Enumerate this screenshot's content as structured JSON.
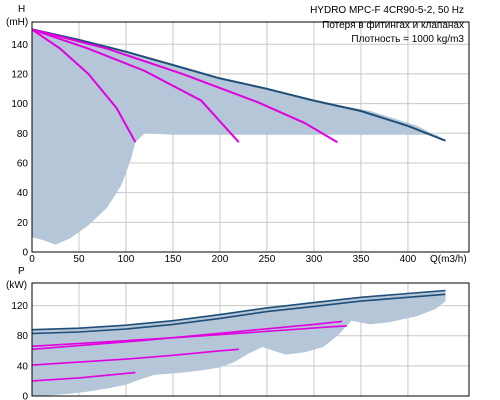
{
  "chart_data": [
    {
      "type": "line",
      "ylabel_letter": "H",
      "ylabel_unit": "(mH)",
      "xlabel": "Q(m3/h)",
      "xlim": [
        0,
        465
      ],
      "ylim": [
        0,
        155
      ],
      "x_ticks": [
        0,
        50,
        100,
        150,
        200,
        250,
        300,
        350,
        400
      ],
      "y_ticks": [
        0,
        20,
        40,
        60,
        80,
        100,
        120,
        140
      ],
      "grid": true,
      "info_lines": [
        "HYDRO MPC-F 4CR90-5-2, 50 Hz",
        "Потеря в фитингах и клапанах",
        "Плотность = 1000 kg/m3"
      ],
      "colors": {
        "max_curve": "#1f4e79",
        "pump_curves": "#e000e0",
        "region_fill": "#b4c6d8"
      },
      "max_curve": {
        "x": [
          0,
          50,
          100,
          150,
          200,
          250,
          300,
          350,
          400,
          440
        ],
        "y": [
          150,
          143,
          135,
          126,
          117,
          110,
          102,
          95,
          85,
          75
        ]
      },
      "pump_curves": [
        {
          "x": [
            0,
            30,
            60,
            90,
            110
          ],
          "y": [
            150,
            137,
            120,
            97,
            74
          ]
        },
        {
          "x": [
            0,
            60,
            120,
            180,
            220
          ],
          "y": [
            150,
            137,
            122,
            102,
            74
          ]
        },
        {
          "x": [
            0,
            80,
            160,
            240,
            290,
            325
          ],
          "y": [
            150,
            137,
            120,
            101,
            87,
            74
          ]
        }
      ],
      "operating_region": {
        "x": [
          0,
          0,
          12,
          25,
          40,
          60,
          80,
          95,
          105,
          110,
          120,
          150,
          200,
          260,
          320,
          380,
          430,
          440,
          410,
          360,
          300,
          250,
          200,
          150,
          100,
          50,
          0
        ],
        "y": [
          150,
          10,
          8,
          5,
          9,
          18,
          30,
          45,
          62,
          74,
          80,
          79,
          79,
          79,
          79,
          79,
          79,
          75,
          85,
          95,
          102,
          110,
          117,
          126,
          135,
          143,
          150
        ]
      }
    },
    {
      "type": "line",
      "ylabel_letter": "P",
      "ylabel_unit": "(kW)",
      "xlim": [
        0,
        465
      ],
      "ylim": [
        0,
        150
      ],
      "x_ticks": [
        0,
        50,
        100,
        150,
        200,
        250,
        300,
        350,
        400
      ],
      "y_ticks": [
        0,
        40,
        80,
        120
      ],
      "grid": true,
      "colors": {
        "max_curve": "#1f4e79",
        "pump_curves": "#e000e0",
        "region_fill": "#b4c6d8"
      },
      "max_curves": [
        {
          "x": [
            0,
            50,
            100,
            150,
            200,
            250,
            300,
            350,
            400,
            440
          ],
          "y": [
            88,
            90,
            94,
            100,
            108,
            117,
            124,
            131,
            136,
            140
          ]
        },
        {
          "x": [
            0,
            50,
            100,
            150,
            200,
            250,
            300,
            350,
            400,
            440
          ],
          "y": [
            83,
            85,
            89,
            95,
            103,
            112,
            119,
            126,
            131,
            135
          ]
        }
      ],
      "pump_curves": [
        {
          "x": [
            0,
            25,
            50,
            75,
            100,
            110
          ],
          "y": [
            20,
            22,
            24,
            27,
            30,
            31
          ]
        },
        {
          "x": [
            0,
            50,
            100,
            150,
            200,
            220
          ],
          "y": [
            41,
            45,
            49,
            54,
            60,
            62
          ]
        },
        {
          "x": [
            0,
            60,
            120,
            180,
            240,
            300,
            330
          ],
          "y": [
            62,
            68,
            74,
            81,
            88,
            95,
            99
          ]
        },
        {
          "x": [
            0,
            80,
            160,
            240,
            320,
            335
          ],
          "y": [
            66,
            72,
            78,
            85,
            92,
            93
          ]
        }
      ],
      "operating_region": {
        "x": [
          0,
          50,
          100,
          150,
          200,
          250,
          300,
          350,
          400,
          440,
          440,
          430,
          410,
          380,
          360,
          340,
          325,
          310,
          290,
          270,
          245,
          230,
          215,
          200,
          180,
          160,
          130,
          115,
          100,
          80,
          60,
          40,
          20,
          0
        ],
        "y": [
          88,
          90,
          94,
          100,
          108,
          117,
          124,
          131,
          136,
          140,
          126,
          116,
          106,
          98,
          95,
          100,
          80,
          65,
          58,
          55,
          65,
          56,
          45,
          38,
          34,
          31,
          28,
          22,
          15,
          10,
          6,
          3,
          1,
          0
        ]
      }
    }
  ]
}
